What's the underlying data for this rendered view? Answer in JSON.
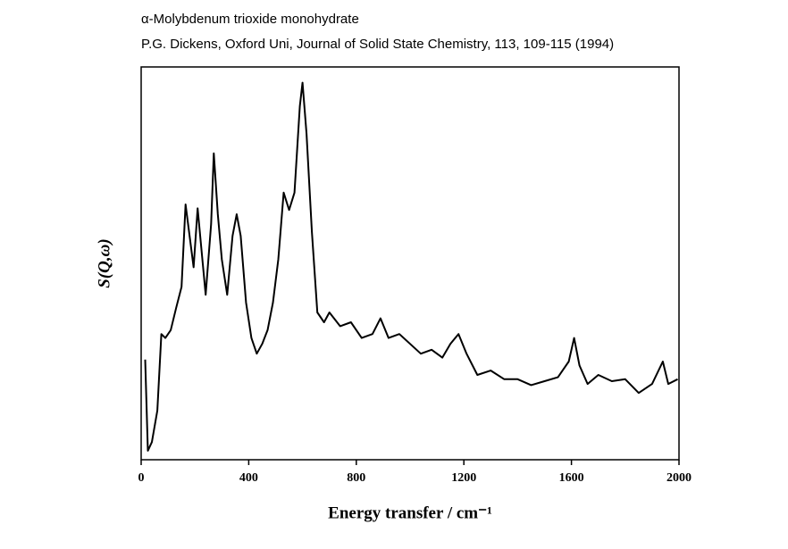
{
  "chart_data": {
    "type": "line",
    "title": "α-Molybdenum trioxide monohydrate",
    "subtitle": "P.G. Dickens, Oxford Uni, Journal of Solid State Chemistry, 113, 109-115 (1994)",
    "xlabel": "Energy transfer / cm⁻¹",
    "ylabel": "S(Q,ω)",
    "xlim": [
      0,
      2000
    ],
    "xticks": [
      0,
      400,
      800,
      1200,
      1600,
      2000
    ],
    "ylim": [
      0,
      100
    ],
    "color": "#000000",
    "x": [
      15,
      25,
      40,
      60,
      75,
      90,
      110,
      130,
      150,
      165,
      180,
      195,
      210,
      225,
      240,
      260,
      270,
      285,
      300,
      320,
      340,
      355,
      370,
      390,
      410,
      430,
      450,
      470,
      490,
      510,
      530,
      550,
      570,
      590,
      600,
      615,
      635,
      655,
      680,
      700,
      740,
      780,
      820,
      860,
      890,
      920,
      960,
      1000,
      1040,
      1080,
      1120,
      1150,
      1180,
      1210,
      1250,
      1300,
      1350,
      1400,
      1450,
      1500,
      1550,
      1590,
      1610,
      1630,
      1660,
      1700,
      1750,
      1800,
      1850,
      1900,
      1940,
      1960,
      1995
    ],
    "values": [
      25.5,
      2.3,
      4.5,
      12.5,
      32,
      31,
      33,
      38.6,
      44,
      65,
      57,
      49,
      64,
      53,
      42,
      60,
      78,
      62.5,
      51,
      42,
      57,
      62.5,
      57,
      40,
      31,
      27,
      29.5,
      33,
      40,
      51,
      68,
      63.6,
      68,
      90,
      96,
      83,
      58,
      37.5,
      35,
      37.5,
      34,
      35,
      31,
      32,
      36,
      31,
      32,
      29.5,
      27,
      28,
      26,
      29.5,
      32,
      27,
      21.6,
      22.7,
      20.5,
      20.5,
      19,
      20,
      21,
      25,
      31,
      24,
      19.3,
      21.6,
      20,
      20.5,
      17,
      19.3,
      25,
      19.3,
      20.5
    ]
  }
}
